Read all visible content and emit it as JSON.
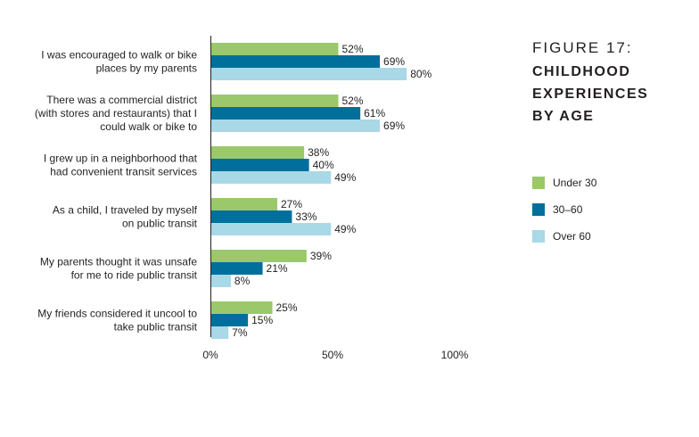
{
  "figure": {
    "number": "FIGURE 17:",
    "title_lines": [
      "CHILDHOOD",
      "EXPERIENCES",
      "BY AGE"
    ]
  },
  "colors": {
    "under30": "#9bc86a",
    "30_60": "#006f9c",
    "over60": "#a9d8e6"
  },
  "chart_data": {
    "type": "bar",
    "orientation": "horizontal",
    "categories": [
      [
        "I was encouraged to walk or bike",
        "places by my parents"
      ],
      [
        "There was a commercial district",
        "(with stores and restaurants) that I",
        "could walk or bike to"
      ],
      [
        "I grew up in a neighborhood that",
        "had convenient transit services"
      ],
      [
        "As a child, I traveled by myself",
        "on public transit"
      ],
      [
        "My parents thought it was unsafe",
        "for me to ride public transit"
      ],
      [
        "My friends considered it uncool to",
        "take public transit"
      ]
    ],
    "series": [
      {
        "name": "Under 30",
        "values": [
          52,
          52,
          38,
          27,
          39,
          25
        ]
      },
      {
        "name": "30–60",
        "values": [
          69,
          61,
          40,
          33,
          21,
          15
        ]
      },
      {
        "name": "Over 60",
        "values": [
          80,
          69,
          49,
          49,
          8,
          7
        ]
      }
    ],
    "value_suffix": "%",
    "xlim": [
      0,
      100
    ],
    "xticks": [
      "0%",
      "50%",
      "100%"
    ],
    "legend_position": "right"
  }
}
